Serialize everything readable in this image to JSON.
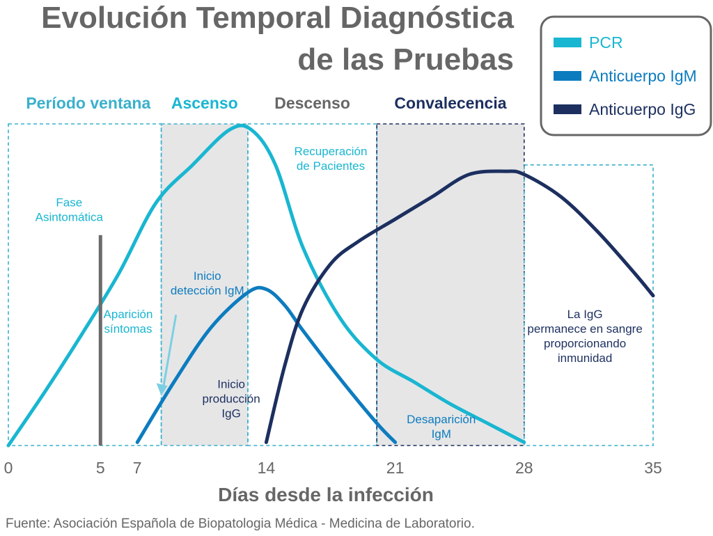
{
  "colors": {
    "pcr": "#19b6d1",
    "igm": "#0d7cbf",
    "igg": "#1c2f5f",
    "gray_text": "#666666",
    "guide": "#3ab0cc",
    "guide_dark": "#1c2f5f",
    "shade": "#e6e6e7",
    "bar": "#6b6b6b",
    "arrow": "#7ccfe2"
  },
  "title": [
    "Evolución Temporal Diagnóstica",
    "de las Pruebas"
  ],
  "source": "Fuente: Asociación Española de Biopatologia Médica - Medicina de Laboratorio.",
  "chart_data": {
    "type": "line",
    "xlabel": "Días desde la infección",
    "ylabel": "",
    "xticks": [
      0,
      5,
      7,
      14,
      21,
      28,
      35
    ],
    "xlim": [
      0,
      35
    ],
    "ylim": [
      0,
      100
    ],
    "legend_position": "top-right",
    "phases": [
      {
        "label": "Período ventana",
        "start": 0,
        "end": 8.3,
        "color": "#3ab0cc",
        "weight": "bold"
      },
      {
        "label": "Ascenso",
        "start": 8.3,
        "end": 13,
        "color": "#19b6d1",
        "weight": "bold",
        "shaded": true
      },
      {
        "label": "Descenso",
        "start": 13,
        "end": 20,
        "color": "#666666",
        "weight": "bold"
      },
      {
        "label": "Convalecencia",
        "start": 20,
        "end": 28,
        "color": "#1c2f5f",
        "weight": "bold",
        "shaded": true,
        "dark": true
      },
      {
        "label": "",
        "start": 28,
        "end": 35,
        "color": "#3ab0cc",
        "lower": true
      }
    ],
    "series": [
      {
        "name": "PCR",
        "color": "#19b6d1",
        "points": [
          [
            0,
            0
          ],
          [
            2,
            17
          ],
          [
            4,
            35
          ],
          [
            6,
            54
          ],
          [
            8,
            76
          ],
          [
            10,
            88
          ],
          [
            12,
            99
          ],
          [
            13.2,
            99
          ],
          [
            14.5,
            88
          ],
          [
            16,
            62
          ],
          [
            18,
            40
          ],
          [
            20,
            27
          ],
          [
            22,
            20
          ],
          [
            24,
            13
          ],
          [
            26,
            7
          ],
          [
            28,
            1
          ]
        ]
      },
      {
        "name": "Anticuerpo IgM",
        "color": "#0d7cbf",
        "points": [
          [
            7,
            1
          ],
          [
            9,
            20
          ],
          [
            11,
            37
          ],
          [
            13,
            48
          ],
          [
            14,
            49
          ],
          [
            15,
            44
          ],
          [
            16,
            36
          ],
          [
            18,
            21
          ],
          [
            20,
            7
          ],
          [
            21,
            1
          ]
        ]
      },
      {
        "name": "Anticuerpo IgG",
        "color": "#1c2f5f",
        "points": [
          [
            14,
            1
          ],
          [
            15,
            25
          ],
          [
            16,
            43
          ],
          [
            17.5,
            57
          ],
          [
            19,
            64
          ],
          [
            21,
            71
          ],
          [
            23,
            78
          ],
          [
            25,
            85
          ],
          [
            27,
            86
          ],
          [
            28,
            85
          ],
          [
            30,
            78
          ],
          [
            32,
            67
          ],
          [
            34,
            54
          ],
          [
            35,
            47
          ]
        ]
      }
    ],
    "annotations": [
      {
        "lines": [
          "Fase",
          "Asintomática"
        ],
        "x": 3.3,
        "y": 75,
        "color": "#19b6d1"
      },
      {
        "lines": [
          "Aparición",
          "síntomas"
        ],
        "x": 6.5,
        "y": 40,
        "color": "#19b6d1"
      },
      {
        "lines": [
          "Inicio",
          "detección IgM"
        ],
        "x": 10.8,
        "y": 52,
        "color": "#0d7cbf"
      },
      {
        "lines": [
          "Recuperación",
          "de Pacientes"
        ],
        "x": 17.5,
        "y": 91,
        "color": "#19b6d1"
      },
      {
        "lines": [
          "Inicio",
          "producción",
          "IgG"
        ],
        "x": 12.1,
        "y": 18,
        "color": "#1c2f5f"
      },
      {
        "lines": [
          "Desaparición",
          "IgM"
        ],
        "x": 23.5,
        "y": 7,
        "color": "#0d7cbf"
      },
      {
        "lines": [
          "La IgG",
          "permanece en sangre",
          "proporcionando",
          "inmunidad"
        ],
        "x": 31.3,
        "y": 40,
        "color": "#1c2f5f"
      }
    ],
    "marker_day": 5
  }
}
